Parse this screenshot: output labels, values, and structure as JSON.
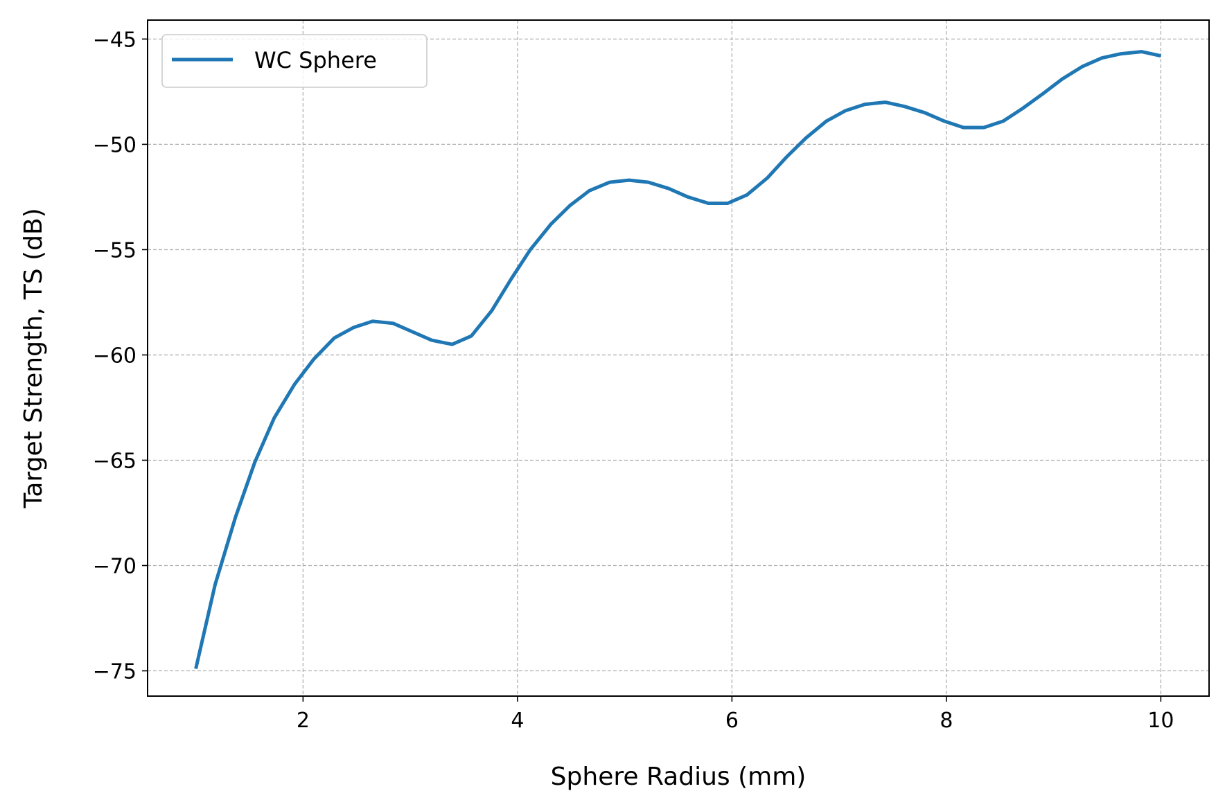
{
  "chart_data": {
    "type": "line",
    "title": "",
    "xlabel": "Sphere Radius (mm)",
    "ylabel": "Target Strength, TS (dB)",
    "xlim": [
      0.55,
      10.45
    ],
    "ylim": [
      -76.2,
      -44.1
    ],
    "xticks": [
      2,
      4,
      6,
      8,
      10
    ],
    "yticks": [
      -75,
      -70,
      -65,
      -60,
      -55,
      -50,
      -45
    ],
    "xtick_labels": [
      "2",
      "4",
      "6",
      "8",
      "10"
    ],
    "ytick_labels": [
      "−75",
      "−70",
      "−65",
      "−60",
      "−55",
      "−50",
      "−45"
    ],
    "grid": true,
    "legend_position": "top-left",
    "colors": {
      "series": "#1f77b4"
    },
    "series": [
      {
        "name": "WC Sphere",
        "x": [
          1.0,
          1.18,
          1.37,
          1.55,
          1.73,
          1.92,
          2.1,
          2.29,
          2.47,
          2.65,
          2.84,
          3.02,
          3.2,
          3.39,
          3.57,
          3.76,
          3.94,
          4.12,
          4.31,
          4.49,
          4.67,
          4.86,
          5.04,
          5.22,
          5.41,
          5.59,
          5.78,
          5.96,
          6.14,
          6.33,
          6.51,
          6.69,
          6.88,
          7.06,
          7.24,
          7.43,
          7.61,
          7.8,
          7.98,
          8.16,
          8.35,
          8.53,
          8.71,
          8.9,
          9.08,
          9.27,
          9.45,
          9.63,
          9.82,
          10.0
        ],
        "y": [
          -74.9,
          -70.9,
          -67.7,
          -65.1,
          -63.0,
          -61.4,
          -60.2,
          -59.2,
          -58.7,
          -58.4,
          -58.5,
          -58.9,
          -59.3,
          -59.5,
          -59.1,
          -57.9,
          -56.4,
          -55.0,
          -53.8,
          -52.9,
          -52.2,
          -51.8,
          -51.7,
          -51.8,
          -52.1,
          -52.5,
          -52.8,
          -52.8,
          -52.4,
          -51.6,
          -50.6,
          -49.7,
          -48.9,
          -48.4,
          -48.1,
          -48.0,
          -48.2,
          -48.5,
          -48.9,
          -49.2,
          -49.2,
          -48.9,
          -48.3,
          -47.6,
          -46.9,
          -46.3,
          -45.9,
          -45.7,
          -45.6,
          -45.8
        ]
      }
    ]
  }
}
